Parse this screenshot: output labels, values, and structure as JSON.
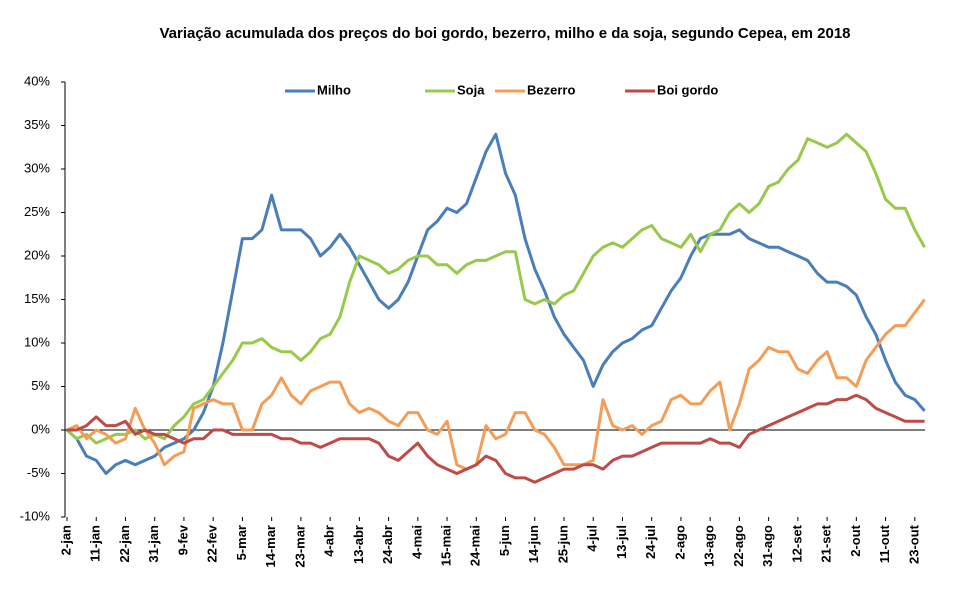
{
  "chart_data": {
    "type": "line",
    "title": "Variação acumulada dos preços do boi gordo, bezerro, milho e da soja, segundo  Cepea, em 2018",
    "categories": [
      "2-jan",
      null,
      null,
      "11-jan",
      null,
      null,
      "22-jan",
      null,
      null,
      "31-jan",
      null,
      null,
      "9-fev",
      null,
      null,
      "22-fev",
      null,
      null,
      "5-mar",
      null,
      null,
      "14-mar",
      null,
      null,
      "23-mar",
      null,
      null,
      "4-abr",
      null,
      null,
      "13-abr",
      null,
      null,
      "24-abr",
      null,
      null,
      "4-mai",
      null,
      null,
      "15-mai",
      null,
      null,
      "24-mai",
      null,
      null,
      "5-jun",
      null,
      null,
      "14-jun",
      null,
      null,
      "25-jun",
      null,
      null,
      "4-jul",
      null,
      null,
      "13-jul",
      null,
      null,
      "24-jul",
      null,
      null,
      "2-ago",
      null,
      null,
      "13-ago",
      null,
      null,
      "22-ago",
      null,
      null,
      "31-ago",
      null,
      null,
      "12-set",
      null,
      null,
      "21-set",
      null,
      null,
      "2-out",
      null,
      null,
      "11-out",
      null,
      null,
      "23-out",
      null
    ],
    "series": [
      {
        "name": "Milho",
        "color": "#4a7ebb",
        "values": [
          0,
          -1,
          -3,
          -3.5,
          -5,
          -4,
          -3.5,
          -4,
          -3.5,
          -3,
          -2,
          -1.5,
          -1,
          0,
          2,
          5,
          10,
          16,
          22,
          22,
          23,
          27,
          23,
          23,
          23,
          22,
          20,
          21,
          22.5,
          21,
          19,
          17,
          15,
          14,
          15,
          17,
          20,
          23,
          24,
          25.5,
          25,
          26,
          29,
          32,
          34,
          29.5,
          27,
          22,
          18.5,
          16,
          13,
          11,
          9.5,
          8,
          5,
          7.5,
          9,
          10,
          10.5,
          11.5,
          12,
          14,
          16,
          17.5,
          20,
          22,
          22.5,
          22.5,
          22.5,
          23,
          22,
          21.5,
          21,
          21,
          20.5,
          20,
          19.5,
          18,
          17,
          17,
          16.5,
          15.5,
          13,
          11,
          8,
          5.5,
          4,
          3.5,
          2.2
        ]
      },
      {
        "name": "Soja",
        "color": "#98c94a",
        "values": [
          0,
          -1,
          -0.5,
          -1.5,
          -1,
          -0.5,
          -0.5,
          0,
          -1,
          -0.5,
          -1,
          0.5,
          1.5,
          3,
          3.5,
          5,
          6.5,
          8,
          10,
          10,
          10.5,
          9.5,
          9,
          9,
          8,
          9,
          10.5,
          11,
          13,
          17,
          20,
          19.5,
          19,
          18,
          18.5,
          19.5,
          20,
          20,
          19,
          19,
          18,
          19,
          19.5,
          19.5,
          20,
          20.5,
          20.5,
          15,
          14.5,
          15,
          14.5,
          15.5,
          16,
          18,
          20,
          21,
          21.5,
          21,
          22,
          23,
          23.5,
          22,
          21.5,
          21,
          22.5,
          20.5,
          22.5,
          23,
          25,
          26,
          25,
          26,
          28,
          28.5,
          30,
          31,
          33.5,
          33,
          32.5,
          33,
          34,
          33,
          32,
          29.5,
          26.5,
          25.5,
          25.5,
          23,
          21
        ]
      },
      {
        "name": "Bezerro",
        "color": "#f59d56",
        "values": [
          0,
          0.5,
          -1,
          0,
          -0.5,
          -1.5,
          -1,
          2.5,
          0,
          -1.5,
          -4,
          -3,
          -2.5,
          2.5,
          3,
          3.5,
          3,
          3,
          0,
          0,
          3,
          4,
          6,
          4,
          3,
          4.5,
          5,
          5.5,
          5.5,
          3,
          2,
          2.5,
          2,
          1,
          0.5,
          2,
          2,
          0,
          -0.5,
          1,
          -4,
          -4.5,
          -4,
          0.5,
          -1,
          -0.5,
          2,
          2,
          0,
          -0.5,
          -2,
          -4,
          -4,
          -4,
          -3.5,
          3.5,
          0.5,
          0,
          0.5,
          -0.5,
          0.5,
          1,
          3.5,
          4,
          3,
          3,
          4.5,
          5.5,
          0,
          3,
          7,
          8,
          9.5,
          9,
          9,
          7,
          6.5,
          8,
          9,
          6,
          6,
          5,
          8,
          9.5,
          11,
          12,
          12,
          13.5,
          15
        ]
      },
      {
        "name": "Boi gordo",
        "color": "#be4b48",
        "values": [
          0,
          0,
          0.5,
          1.5,
          0.5,
          0.5,
          1,
          -0.5,
          0,
          -0.5,
          -0.5,
          -1,
          -1.5,
          -1,
          -1,
          0,
          0,
          -0.5,
          -0.5,
          -0.5,
          -0.5,
          -0.5,
          -1,
          -1,
          -1.5,
          -1.5,
          -2,
          -1.5,
          -1,
          -1,
          -1,
          -1,
          -1.5,
          -3,
          -3.5,
          -2.5,
          -1.5,
          -3,
          -4,
          -4.5,
          -5,
          -4.5,
          -4,
          -3,
          -3.5,
          -5,
          -5.5,
          -5.5,
          -6,
          -5.5,
          -5,
          -4.5,
          -4.5,
          -4,
          -4,
          -4.5,
          -3.5,
          -3,
          -3,
          -2.5,
          -2,
          -1.5,
          -1.5,
          -1.5,
          -1.5,
          -1.5,
          -1,
          -1.5,
          -1.5,
          -2,
          -0.5,
          0,
          0.5,
          1,
          1.5,
          2,
          2.5,
          3,
          3,
          3.5,
          3.5,
          4,
          3.5,
          2.5,
          2,
          1.5,
          1,
          1,
          1
        ]
      }
    ],
    "ylim": [
      -10,
      40
    ],
    "yticks": [
      {
        "value": -10,
        "label": "-10%"
      },
      {
        "value": -5,
        "label": "-5%"
      },
      {
        "value": 0,
        "label": "0%"
      },
      {
        "value": 5,
        "label": "5%"
      },
      {
        "value": 10,
        "label": "10%"
      },
      {
        "value": 15,
        "label": "15%"
      },
      {
        "value": 20,
        "label": "20%"
      },
      {
        "value": 25,
        "label": "25%"
      },
      {
        "value": 30,
        "label": "30%"
      },
      {
        "value": 35,
        "label": "35%"
      },
      {
        "value": 40,
        "label": "40%"
      }
    ],
    "grid": false,
    "legend": "top"
  }
}
